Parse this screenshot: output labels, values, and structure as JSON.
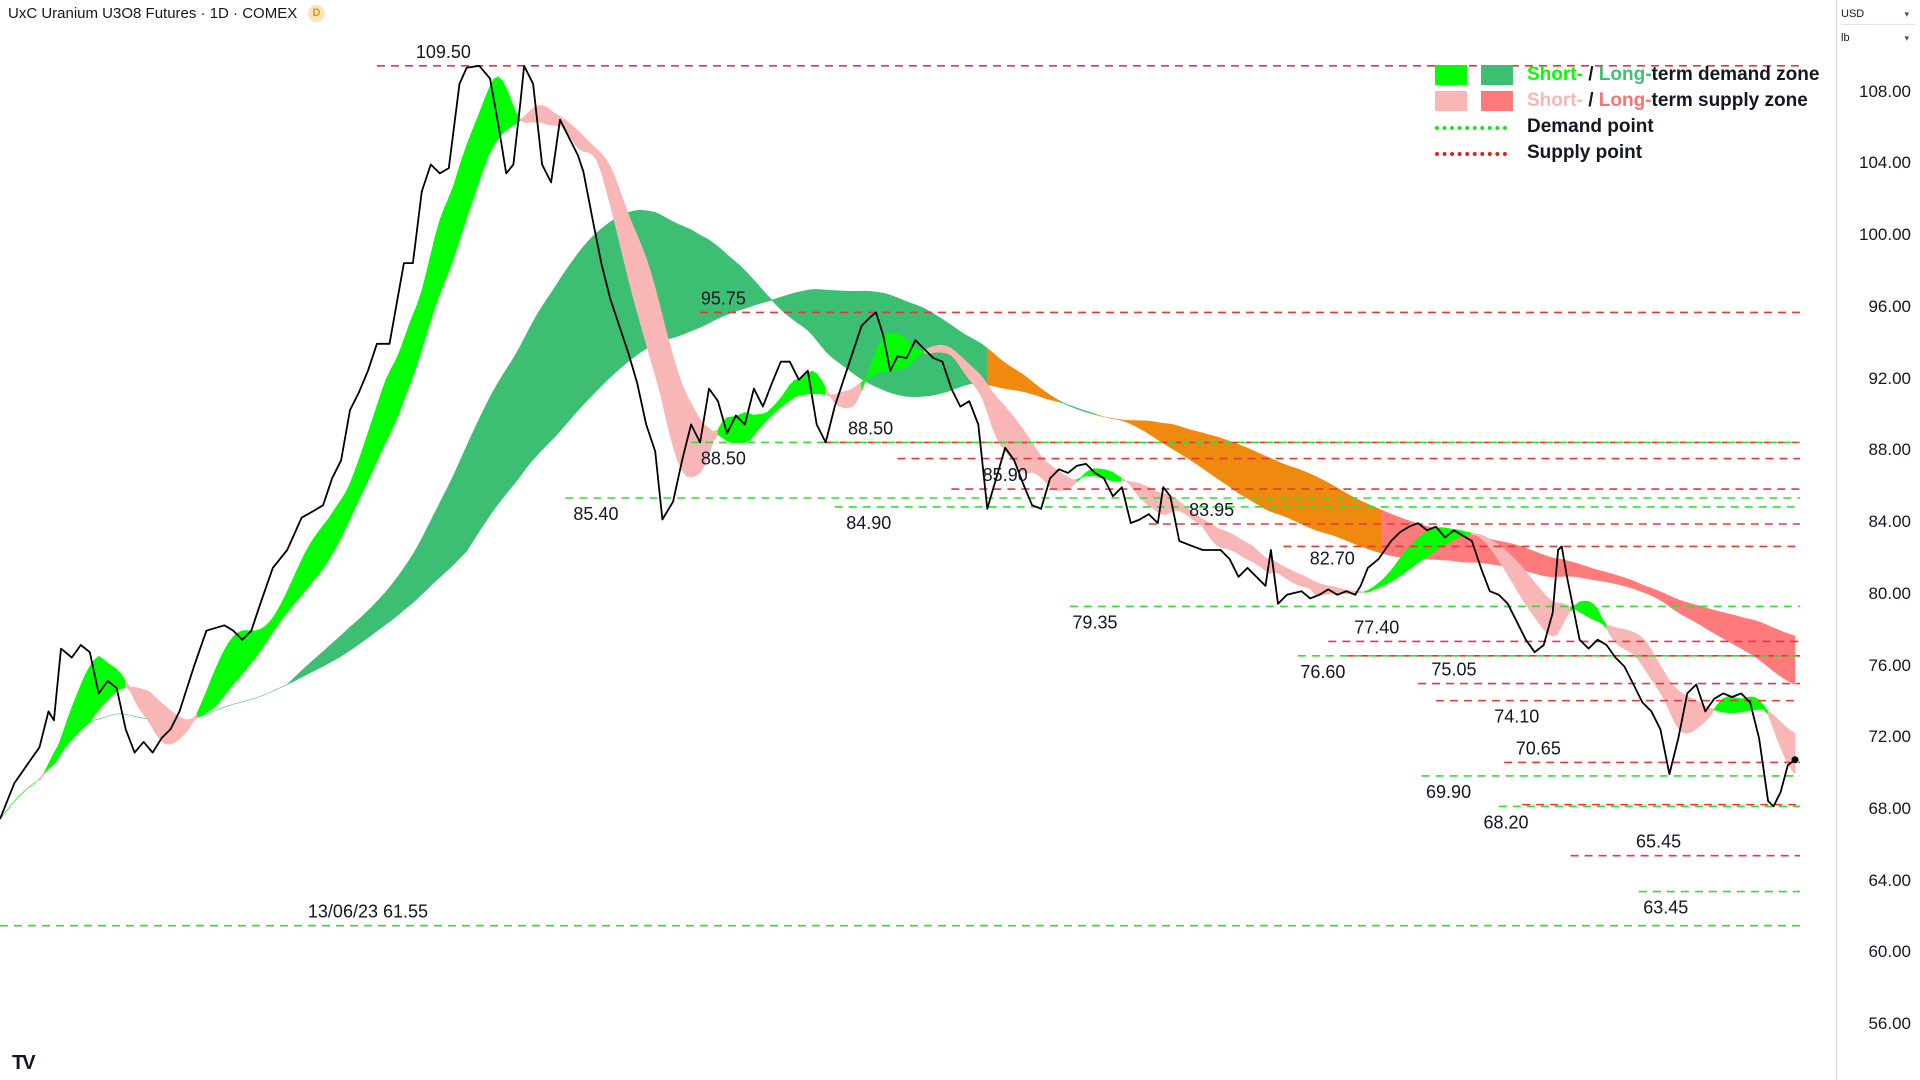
{
  "header": {
    "title": "UxC Uranium U3O8 Futures · 1D · COMEX",
    "source_badge": "D",
    "currency": "USD",
    "unit": "lb"
  },
  "footer": {
    "logo": "TV"
  },
  "legend": {
    "items": [
      {
        "parts": [
          {
            "text": "Short-",
            "color": "#00ff00"
          },
          {
            "text": " / ",
            "color": "#131722"
          },
          {
            "text": "Long-",
            "color": "#3cc175"
          },
          {
            "text": "term demand zone",
            "color": "#131722"
          }
        ],
        "swatches": [
          "#00ff00",
          "#3cbf73"
        ]
      },
      {
        "parts": [
          {
            "text": "Short-",
            "color": "#f8b6b6"
          },
          {
            "text": " / ",
            "color": "#131722"
          },
          {
            "text": "Long-",
            "color": "#ff7070"
          },
          {
            "text": "term supply zone",
            "color": "#131722"
          }
        ],
        "swatches": [
          "#f8b6b6",
          "#ff7a7a"
        ]
      },
      {
        "parts": [
          {
            "text": "Demand point",
            "color": "#131722"
          }
        ],
        "dash_color": "#22dd22"
      },
      {
        "parts": [
          {
            "text": "Supply point",
            "color": "#131722"
          }
        ],
        "dash_color": "#e02020"
      }
    ]
  },
  "chart_data": {
    "type": "line",
    "title": "UxC Uranium U3O8 Futures · 1D · COMEX",
    "y_axis_ticks": [
      "108.00",
      "104.00",
      "100.00",
      "96.00",
      "92.00",
      "88.00",
      "84.00",
      "80.00",
      "76.00",
      "72.00",
      "68.00",
      "64.00",
      "60.00",
      "56.00"
    ],
    "ylim": [
      53.5,
      111.5
    ],
    "x_range": [
      0,
      100
    ],
    "colors": {
      "price": "#000000",
      "short_demand": "#00ff00",
      "long_demand": "#3cbf73",
      "short_supply": "#f8b6b6",
      "long_supply": "#ff7a7a",
      "transition": "#f08a0e",
      "demand_point": "#33dd33",
      "supply_point": "#e8363b"
    },
    "supply_points": [
      {
        "label": "109.50",
        "value": 109.5,
        "x_start": 21,
        "label_x": 24.7,
        "label_pos": "above"
      },
      {
        "label": "95.75",
        "value": 95.75,
        "x_start": 39,
        "label_x": 40.3,
        "label_pos": "above"
      },
      {
        "label": "88.50",
        "value": 88.5,
        "x_start": 46,
        "label_x": 48.5,
        "label_pos": "above"
      },
      {
        "label": "",
        "value": 87.6,
        "x_start": 50,
        "label_x": null,
        "label_pos": "none"
      },
      {
        "label": "85.90",
        "value": 85.9,
        "x_start": 53,
        "label_x": 56.0,
        "label_pos": "above"
      },
      {
        "label": "83.95",
        "value": 83.95,
        "x_start": 64,
        "label_x": 67.5,
        "label_pos": "above"
      },
      {
        "label": "82.70",
        "value": 82.7,
        "x_start": 71.5,
        "label_x": 74.0,
        "label_pos": "right"
      },
      {
        "label": "77.40",
        "value": 77.4,
        "x_start": 74,
        "label_x": 76.7,
        "label_pos": "above"
      },
      {
        "label": "",
        "value": 76.6,
        "x_start": 75,
        "label_x": null,
        "label_pos": "none"
      },
      {
        "label": "75.05",
        "value": 75.05,
        "x_start": 79,
        "label_x": 81.0,
        "label_pos": "above"
      },
      {
        "label": "74.10",
        "value": 74.1,
        "x_start": 80,
        "label_x": 84.5,
        "label_pos": "below"
      },
      {
        "label": "70.65",
        "value": 70.65,
        "x_start": 83.8,
        "label_x": 85.7,
        "label_pos": "above"
      },
      {
        "label": "",
        "value": 68.3,
        "x_start": 84.8,
        "label_x": null,
        "label_pos": "none"
      },
      {
        "label": "65.45",
        "value": 65.45,
        "x_start": 87.5,
        "label_x": 92.4,
        "label_pos": "above"
      }
    ],
    "demand_points": [
      {
        "label": "13/06/23 61.55",
        "value": 61.55,
        "x_start": 0,
        "label_x": 20.5,
        "label_pos": "above"
      },
      {
        "label": "85.40",
        "value": 85.4,
        "x_start": 31.5,
        "label_x": 33.2,
        "label_pos": "below"
      },
      {
        "label": "88.50",
        "value": 88.5,
        "x_start": 38.5,
        "label_x": 40.3,
        "label_pos": "below"
      },
      {
        "label": "84.90",
        "value": 84.9,
        "x_start": 46.5,
        "label_x": 48.4,
        "label_pos": "below"
      },
      {
        "label": "79.35",
        "value": 79.35,
        "x_start": 59.6,
        "label_x": 61.0,
        "label_pos": "below"
      },
      {
        "label": "76.60",
        "value": 76.6,
        "x_start": 72.3,
        "label_x": 73.7,
        "label_pos": "below"
      },
      {
        "label": "69.90",
        "value": 69.9,
        "x_start": 79.2,
        "label_x": 80.7,
        "label_pos": "below"
      },
      {
        "label": "68.20",
        "value": 68.2,
        "x_start": 83.5,
        "label_x": 83.9,
        "label_pos": "below"
      },
      {
        "label": "63.45",
        "value": 63.45,
        "x_start": 91.3,
        "label_x": 92.8,
        "label_pos": "below"
      }
    ],
    "price": [
      [
        0,
        67.5
      ],
      [
        0.8,
        69.5
      ],
      [
        1.5,
        70.5
      ],
      [
        2.2,
        71.5
      ],
      [
        2.7,
        73.5
      ],
      [
        3.0,
        73.0
      ],
      [
        3.4,
        77.0
      ],
      [
        4.0,
        76.5
      ],
      [
        4.5,
        77.2
      ],
      [
        5.0,
        76.8
      ],
      [
        5.5,
        74.5
      ],
      [
        6.0,
        75.2
      ],
      [
        6.5,
        74.8
      ],
      [
        7.0,
        72.5
      ],
      [
        7.5,
        71.2
      ],
      [
        8.0,
        71.8
      ],
      [
        8.5,
        71.2
      ],
      [
        9.0,
        72.0
      ],
      [
        9.5,
        72.5
      ],
      [
        10.0,
        73.5
      ],
      [
        10.8,
        76.0
      ],
      [
        11.5,
        78.0
      ],
      [
        12.5,
        78.3
      ],
      [
        13.0,
        78.0
      ],
      [
        13.5,
        77.5
      ],
      [
        14.0,
        78.0
      ],
      [
        14.5,
        79.5
      ],
      [
        15.2,
        81.5
      ],
      [
        16.0,
        82.5
      ],
      [
        16.8,
        84.3
      ],
      [
        17.5,
        84.7
      ],
      [
        18.0,
        85.0
      ],
      [
        18.5,
        86.5
      ],
      [
        19.0,
        87.5
      ],
      [
        19.5,
        90.3
      ],
      [
        20.0,
        91.3
      ],
      [
        20.5,
        92.5
      ],
      [
        21.0,
        94.0
      ],
      [
        21.7,
        94.0
      ],
      [
        22.5,
        98.5
      ],
      [
        23.0,
        98.5
      ],
      [
        23.5,
        102.5
      ],
      [
        24.0,
        104.0
      ],
      [
        24.5,
        103.5
      ],
      [
        25.0,
        103.8
      ],
      [
        25.6,
        108.5
      ],
      [
        26.0,
        109.4
      ],
      [
        26.7,
        109.5
      ],
      [
        27.3,
        108.8
      ],
      [
        27.8,
        106.0
      ],
      [
        28.2,
        103.5
      ],
      [
        28.6,
        104.0
      ],
      [
        29.0,
        107.5
      ],
      [
        29.2,
        109.5
      ],
      [
        29.7,
        108.5
      ],
      [
        30.2,
        104.0
      ],
      [
        30.7,
        103.0
      ],
      [
        31.2,
        106.5
      ],
      [
        31.7,
        105.5
      ],
      [
        32.2,
        104.5
      ],
      [
        32.5,
        103.6
      ],
      [
        33.0,
        101.0
      ],
      [
        33.5,
        98.5
      ],
      [
        34.0,
        96.5
      ],
      [
        34.5,
        95.0
      ],
      [
        35.0,
        93.5
      ],
      [
        35.5,
        91.8
      ],
      [
        36.0,
        89.5
      ],
      [
        36.5,
        88.0
      ],
      [
        36.9,
        84.2
      ],
      [
        37.5,
        85.2
      ],
      [
        38.0,
        87.5
      ],
      [
        38.5,
        89.5
      ],
      [
        39.0,
        88.5
      ],
      [
        39.5,
        91.5
      ],
      [
        40.0,
        90.8
      ],
      [
        40.5,
        89.0
      ],
      [
        41.0,
        90.0
      ],
      [
        41.5,
        89.5
      ],
      [
        42.0,
        91.5
      ],
      [
        42.5,
        90.5
      ],
      [
        43.0,
        91.8
      ],
      [
        43.5,
        93.0
      ],
      [
        44.0,
        93.0
      ],
      [
        44.5,
        92.0
      ],
      [
        45.0,
        92.5
      ],
      [
        45.5,
        89.5
      ],
      [
        46.0,
        88.5
      ],
      [
        46.5,
        90.5
      ],
      [
        47.0,
        92.0
      ],
      [
        47.5,
        93.5
      ],
      [
        48.0,
        95.0
      ],
      [
        48.5,
        95.5
      ],
      [
        48.8,
        95.75
      ],
      [
        49.2,
        94.5
      ],
      [
        49.6,
        92.5
      ],
      [
        50.0,
        93.3
      ],
      [
        50.5,
        93.2
      ],
      [
        51.0,
        94.2
      ],
      [
        51.5,
        93.7
      ],
      [
        52.0,
        93.2
      ],
      [
        52.5,
        93.0
      ],
      [
        53.0,
        91.5
      ],
      [
        53.5,
        90.5
      ],
      [
        54.0,
        90.8
      ],
      [
        54.5,
        89.5
      ],
      [
        55.0,
        84.8
      ],
      [
        55.5,
        86.5
      ],
      [
        56.0,
        88.2
      ],
      [
        56.5,
        87.5
      ],
      [
        57.0,
        86.2
      ],
      [
        57.5,
        85.0
      ],
      [
        58.0,
        84.8
      ],
      [
        58.5,
        86.5
      ],
      [
        59.0,
        87.0
      ],
      [
        59.5,
        86.8
      ],
      [
        60.0,
        87.2
      ],
      [
        60.5,
        87.3
      ],
      [
        61.0,
        86.8
      ],
      [
        61.5,
        86.5
      ],
      [
        62.0,
        85.5
      ],
      [
        62.5,
        86.0
      ],
      [
        63.0,
        84.0
      ],
      [
        63.5,
        84.2
      ],
      [
        64.0,
        84.5
      ],
      [
        64.5,
        84.0
      ],
      [
        64.8,
        86.0
      ],
      [
        65.2,
        85.5
      ],
      [
        65.7,
        83.0
      ],
      [
        66.2,
        82.8
      ],
      [
        67.0,
        82.5
      ],
      [
        68.0,
        82.5
      ],
      [
        68.5,
        82.0
      ],
      [
        69.0,
        81.0
      ],
      [
        69.5,
        81.5
      ],
      [
        70.0,
        81.0
      ],
      [
        70.5,
        80.5
      ],
      [
        70.8,
        82.5
      ],
      [
        71.2,
        79.5
      ],
      [
        71.7,
        80.0
      ],
      [
        72.5,
        80.2
      ],
      [
        73.0,
        79.8
      ],
      [
        73.5,
        80.0
      ],
      [
        74.0,
        80.3
      ],
      [
        74.5,
        80.0
      ],
      [
        75.0,
        80.2
      ],
      [
        75.5,
        80.0
      ],
      [
        75.8,
        80.5
      ],
      [
        76.2,
        81.5
      ],
      [
        76.8,
        82.0
      ],
      [
        77.5,
        83.0
      ],
      [
        78.0,
        83.5
      ],
      [
        78.5,
        83.8
      ],
      [
        79.0,
        84.0
      ],
      [
        79.5,
        83.6
      ],
      [
        80.0,
        83.8
      ],
      [
        80.5,
        83.2
      ],
      [
        81.0,
        83.6
      ],
      [
        81.5,
        83.3
      ],
      [
        82.0,
        83.0
      ],
      [
        82.5,
        81.5
      ],
      [
        83.0,
        80.2
      ],
      [
        83.5,
        80.0
      ],
      [
        84.0,
        79.5
      ],
      [
        84.5,
        78.5
      ],
      [
        85.0,
        77.5
      ],
      [
        85.5,
        76.8
      ],
      [
        86.0,
        77.2
      ],
      [
        86.5,
        79.0
      ],
      [
        86.8,
        82.5
      ],
      [
        87.0,
        82.7
      ],
      [
        87.3,
        81.0
      ],
      [
        87.6,
        79.5
      ],
      [
        88.0,
        77.5
      ],
      [
        88.5,
        77.0
      ],
      [
        89.0,
        77.5
      ],
      [
        89.5,
        77.2
      ],
      [
        90.0,
        76.5
      ],
      [
        90.5,
        76.0
      ],
      [
        91.0,
        75.0
      ],
      [
        91.5,
        74.0
      ],
      [
        92.0,
        73.5
      ],
      [
        92.5,
        72.5
      ],
      [
        93.0,
        70.0
      ],
      [
        93.5,
        72.0
      ],
      [
        94.0,
        74.5
      ],
      [
        94.5,
        75.0
      ],
      [
        95.0,
        73.5
      ],
      [
        95.5,
        74.2
      ],
      [
        96.0,
        74.5
      ],
      [
        96.5,
        74.3
      ],
      [
        97.0,
        74.5
      ],
      [
        97.5,
        74.0
      ],
      [
        98.0,
        72.0
      ],
      [
        98.5,
        68.5
      ],
      [
        98.8,
        68.2
      ],
      [
        99.2,
        69.0
      ],
      [
        99.6,
        70.5
      ],
      [
        100.0,
        70.8
      ]
    ]
  }
}
